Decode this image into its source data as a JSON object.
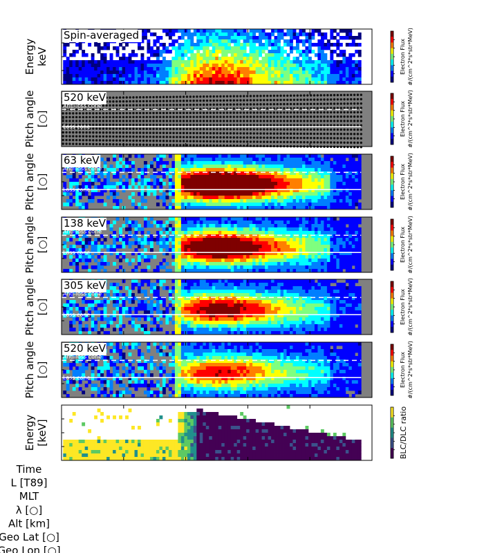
{
  "chart_data": [
    {
      "type": "heatmap",
      "panel_label": "Spin-averaged",
      "ylabel": [
        "Energy",
        "keV"
      ],
      "colorbar_label": [
        "Electron Flux",
        "#/(cm^2*s*str*MeV)"
      ],
      "colormap": "jet",
      "background": "#ffffff"
    },
    {
      "type": "heatmap",
      "panel_label": "520 keV",
      "ylabel": [
        "Pitch angle",
        "[○]"
      ],
      "colorbar_label": [
        "Electron Flux",
        "#/(cm^2*s*str*MeV)"
      ],
      "annotations": [
        "Anti-loss cone",
        "Loss cone"
      ],
      "colormap": "jet",
      "background": "#808080"
    },
    {
      "type": "heatmap",
      "panel_label": "63 keV",
      "ylabel": [
        "Pitch angle",
        "[○]"
      ],
      "colorbar_label": [
        "Electron Flux",
        "#/(cm^2*s*str*MeV)"
      ],
      "annotations": [
        "Anti-loss cone",
        "Loss cone"
      ],
      "colormap": "jet",
      "background": "#808080"
    },
    {
      "type": "heatmap",
      "panel_label": "138 keV",
      "ylabel": [
        "Pitch angle",
        "[○]"
      ],
      "colorbar_label": [
        "Electron Flux",
        "#/(cm^2*s*str*MeV)"
      ],
      "annotations": [
        "Anti-loss cone",
        "Loss cone"
      ],
      "colormap": "jet",
      "background": "#808080"
    },
    {
      "type": "heatmap",
      "panel_label": "305 keV",
      "ylabel": [
        "Pitch angle",
        "[○]"
      ],
      "colorbar_label": [
        "Electron Flux",
        "#/(cm^2*s*str*MeV)"
      ],
      "annotations": [
        "Anti-loss cone",
        "Loss cone"
      ],
      "colormap": "jet",
      "background": "#808080"
    },
    {
      "type": "heatmap",
      "panel_label": "520 keV",
      "ylabel": [
        "Pitch angle",
        "[○]"
      ],
      "colorbar_label": [
        "Electron Flux",
        "#/(cm^2*s*str*MeV)"
      ],
      "annotations": [
        "Anti-loss cone",
        "Loss cone"
      ],
      "colormap": "jet",
      "background": "#808080"
    },
    {
      "type": "heatmap",
      "panel_label": "",
      "ylabel": [
        "Energy",
        "[keV]"
      ],
      "colorbar_label": [
        "BLC/DLC ratio"
      ],
      "colormap": "viridis",
      "background": "#ffffff"
    }
  ],
  "x_axis_rows": [
    "Time",
    "L [T89]",
    "MLT",
    "λ [○]",
    "Alt [km]",
    "Geo Lat [○]",
    "Geo Lon [○]"
  ]
}
